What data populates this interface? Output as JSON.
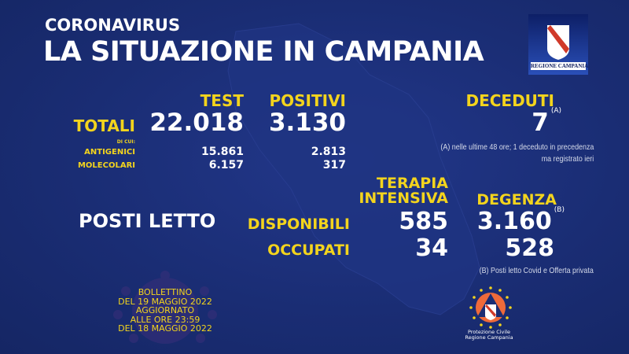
{
  "header": {
    "kicker": "CORONAVIRUS",
    "title": "LA SITUAZIONE IN CAMPANIA"
  },
  "logo": {
    "text": "REGIONE CAMPANIA"
  },
  "colors": {
    "background": "#1a2d74",
    "accent": "#f3d41d",
    "text": "#ffffff"
  },
  "tests": {
    "col_test": "TEST",
    "col_positivi": "POSITIVI",
    "totali_label": "TOTALI",
    "totali_test": "22.018",
    "totali_positivi": "3.130",
    "di_cui": "DI CUI:",
    "rows": [
      {
        "label": "ANTIGENICI",
        "test": "15.861",
        "positivi": "2.813"
      },
      {
        "label": "MOLECOLARI",
        "test": "6.157",
        "positivi": "317"
      }
    ]
  },
  "deceduti": {
    "label": "DECEDUTI",
    "value": "7",
    "mark": "(A)",
    "note_line1": "(A) nelle ultime 48 ore; 1 deceduto in precedenza",
    "note_line2": "ma registrato ieri"
  },
  "posti_letto": {
    "title": "POSTI LETTO",
    "col_ti_line1": "TERAPIA",
    "col_ti_line2": "INTENSIVA",
    "col_degenza": "DEGENZA",
    "disponibili_label": "DISPONIBILI",
    "disponibili_ti": "585",
    "disponibili_degenza": "3.160",
    "degenza_mark": "(B)",
    "occupati_label": "OCCUPATI",
    "occupati_ti": "34",
    "occupati_degenza": "528",
    "note": "(B) Posti letto Covid e Offerta privata"
  },
  "bulletin": {
    "lines": [
      "BOLLETTINO",
      "DEL 19 MAGGIO 2022",
      "AGGIORNATO",
      "ALLE ORE 23:59",
      "DEL 18 MAGGIO 2022"
    ]
  },
  "protezione_civile": {
    "line1": "Protezione Civile",
    "line2": "Regione Campania"
  }
}
